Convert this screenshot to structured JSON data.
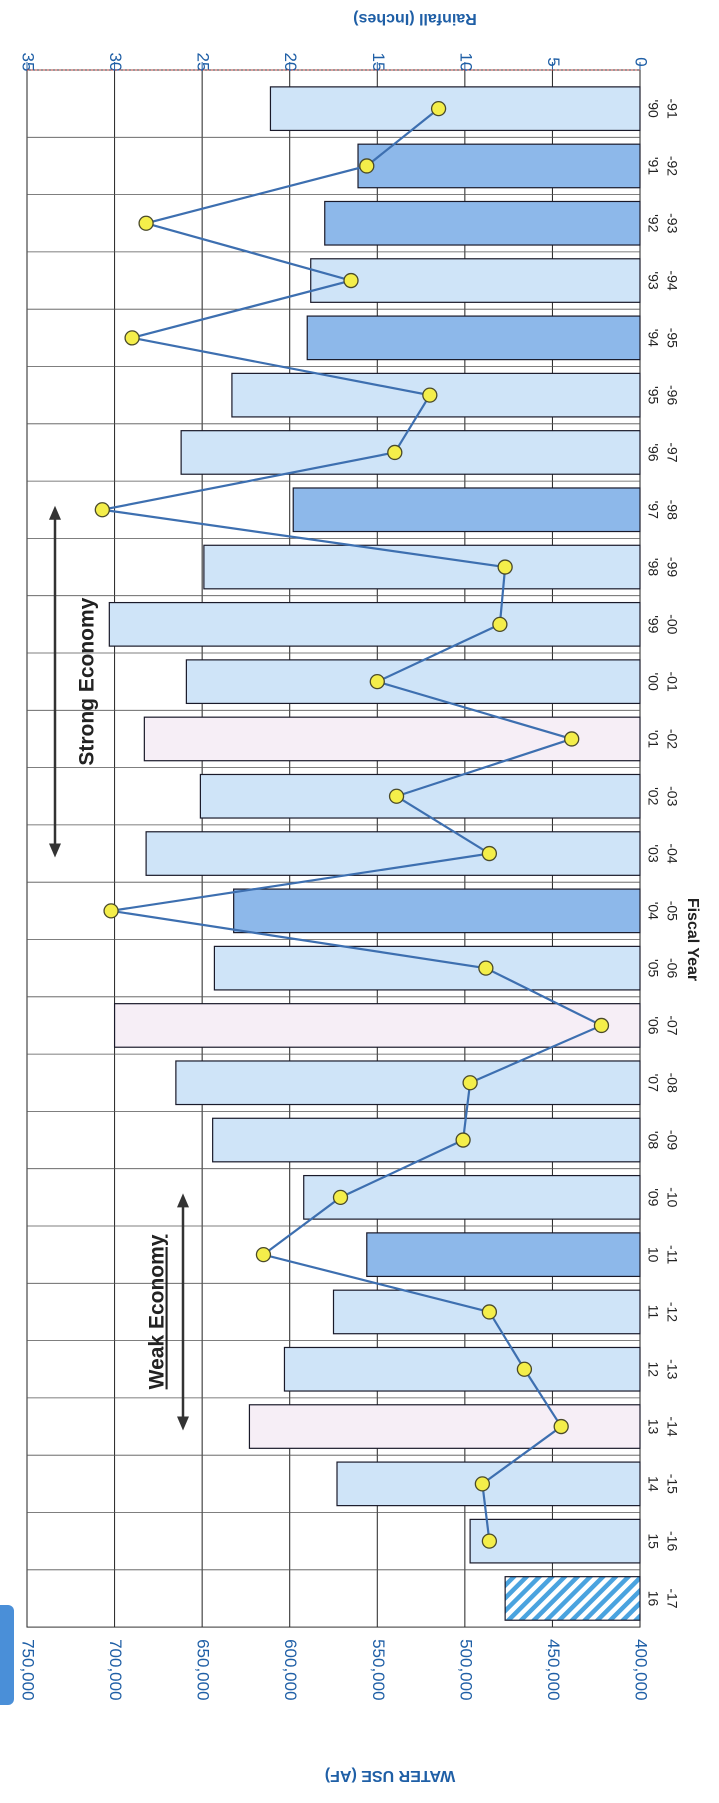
{
  "colors": {
    "bar_normal": "#cfe4f8",
    "bar_dry": "#8db8ea",
    "bar_wet": "#f6eef6",
    "bar_projected": "#4aa3df",
    "line": "#3d6fb0",
    "marker_fill": "#f4ee4a",
    "axis_text": "#1f5fa6"
  },
  "chart_data": {
    "type": "bar",
    "orientation": "rotated 90 degrees clockwise",
    "categories": [
      {
        "line1": "'90",
        "line2": "-91"
      },
      {
        "line1": "'91",
        "line2": "-92"
      },
      {
        "line1": "'92",
        "line2": "-93"
      },
      {
        "line1": "'93",
        "line2": "-94"
      },
      {
        "line1": "'94",
        "line2": "-95"
      },
      {
        "line1": "'95",
        "line2": "-96"
      },
      {
        "line1": "'96",
        "line2": "-97"
      },
      {
        "line1": "'97",
        "line2": "-98"
      },
      {
        "line1": "'98",
        "line2": "-99"
      },
      {
        "line1": "'99",
        "line2": "-00"
      },
      {
        "line1": "'00",
        "line2": "-01"
      },
      {
        "line1": "'01",
        "line2": "-02"
      },
      {
        "line1": "'02",
        "line2": "-03"
      },
      {
        "line1": "'03",
        "line2": "-04"
      },
      {
        "line1": "'04",
        "line2": "-05"
      },
      {
        "line1": "'05",
        "line2": "-06"
      },
      {
        "line1": "'06",
        "line2": "-07"
      },
      {
        "line1": "'07",
        "line2": "-08"
      },
      {
        "line1": "'08",
        "line2": "-09"
      },
      {
        "line1": "'09",
        "line2": "-10"
      },
      {
        "line1": "10",
        "line2": "-11"
      },
      {
        "line1": "11",
        "line2": "-12"
      },
      {
        "line1": "12",
        "line2": "-13"
      },
      {
        "line1": "13",
        "line2": "-14"
      },
      {
        "line1": "14",
        "line2": "-15"
      },
      {
        "line1": "15",
        "line2": "-16"
      },
      {
        "line1": "16",
        "line2": "-17"
      }
    ],
    "water_use": [
      611000,
      561000,
      580000,
      588000,
      590000,
      633000,
      662000,
      598000,
      649000,
      703000,
      659000,
      683000,
      651000,
      682000,
      632000,
      643000,
      700000,
      665000,
      644000,
      592000,
      556000,
      575000,
      603000,
      623000,
      573000,
      497000,
      477000
    ],
    "bar_style": [
      "normal",
      "dry",
      "dry",
      "normal",
      "dry",
      "normal",
      "normal",
      "dry",
      "normal",
      "normal",
      "normal",
      "wet",
      "normal",
      "normal",
      "dry",
      "normal",
      "wet",
      "normal",
      "normal",
      "normal",
      "dry",
      "normal",
      "normal",
      "wet",
      "normal",
      "normal",
      "projected"
    ],
    "rainfall": [
      11.5,
      15.6,
      28.2,
      16.5,
      29.0,
      12.0,
      14.0,
      30.7,
      7.7,
      8.0,
      15.0,
      3.9,
      13.9,
      8.6,
      30.2,
      8.8,
      2.2,
      9.7,
      10.1,
      17.1,
      21.5,
      8.6,
      6.6,
      4.5,
      9.0,
      8.6,
      null
    ],
    "left_axis": {
      "title": "WATER USE (AF)",
      "min": 400000,
      "max": 750000,
      "step": 50000,
      "ticks": [
        "400,000",
        "450,000",
        "500,000",
        "550,000",
        "600,000",
        "650,000",
        "700,000",
        "750,000"
      ]
    },
    "right_axis": {
      "title": "Rainfall (Inches)",
      "min": 0,
      "max": 35,
      "step": 5,
      "ticks": [
        "0",
        "5",
        "10",
        "15",
        "20",
        "25",
        "30",
        "35"
      ]
    },
    "xlabel": "Fiscal Year",
    "annotations": [
      {
        "text": "Strong Economy",
        "from_index": 7,
        "to_index": 13
      },
      {
        "text": "Weak Economy",
        "from_index": 19,
        "to_index": 23
      }
    ],
    "grid": true
  }
}
